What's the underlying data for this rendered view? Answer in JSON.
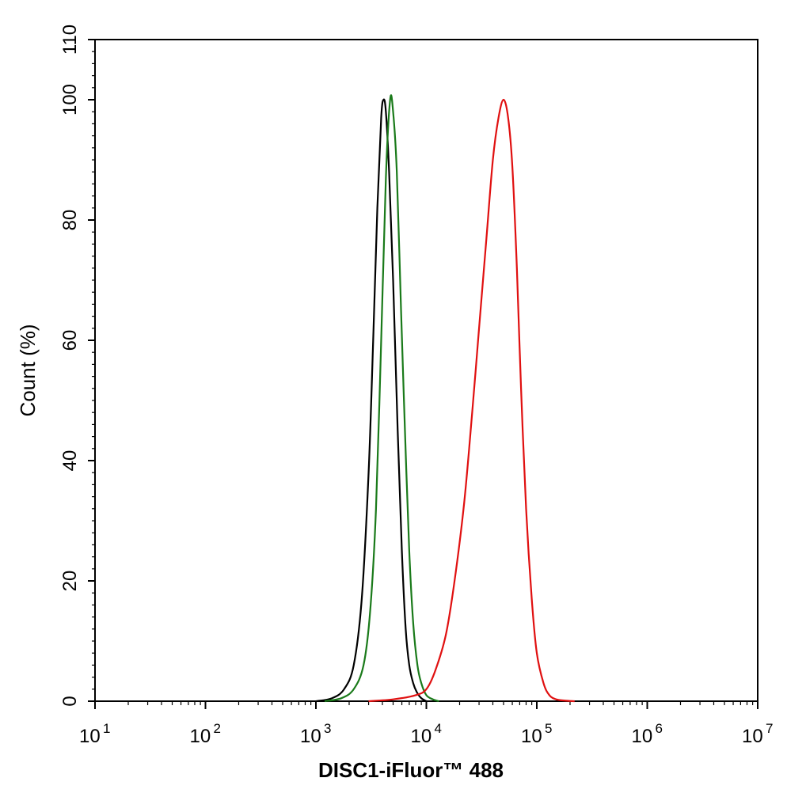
{
  "chart_data": {
    "type": "line",
    "title": "",
    "xlabel": "DISC1-iFluor™ 488",
    "ylabel": "Count  (%)",
    "xscale": "log",
    "xlim": [
      10,
      10000000
    ],
    "ylim": [
      0,
      110
    ],
    "x_tick_bases": [
      "10",
      "10",
      "10",
      "10",
      "10",
      "10",
      "10"
    ],
    "x_tick_exponents": [
      "1",
      "2",
      "3",
      "4",
      "5",
      "6",
      "7"
    ],
    "y_ticks": [
      "0",
      "20",
      "40",
      "60",
      "80",
      "100",
      "110"
    ],
    "grid": false,
    "legend": "none",
    "series": [
      {
        "color": "#000000",
        "x": [
          1000,
          1400,
          1800,
          2200,
          2600,
          3000,
          3300,
          3600,
          3900,
          4100,
          4300,
          4600,
          5000,
          5500,
          6000,
          6500,
          7000,
          7600,
          8200,
          9000,
          10000
        ],
        "y": [
          0,
          0.5,
          2,
          6,
          17,
          38,
          60,
          82,
          97,
          100,
          98,
          88,
          70,
          45,
          25,
          12,
          6,
          3,
          1.5,
          0.5,
          0
        ]
      },
      {
        "color": "#1a7a1a",
        "x": [
          1200,
          1700,
          2200,
          2700,
          3100,
          3500,
          3900,
          4300,
          4700,
          5000,
          5400,
          5900,
          6400,
          7000,
          7600,
          8300,
          9000,
          10000,
          11500,
          13000
        ],
        "y": [
          0,
          0.5,
          2,
          6,
          15,
          32,
          60,
          87,
          100,
          98,
          88,
          65,
          45,
          25,
          13,
          6,
          3,
          1,
          0.3,
          0
        ]
      },
      {
        "color": "#e01010",
        "x": [
          3000,
          5000,
          8000,
          10000,
          12000,
          15000,
          18000,
          22000,
          26000,
          30000,
          35000,
          40000,
          45000,
          50000,
          55000,
          60000,
          66000,
          72000,
          80000,
          90000,
          100000,
          115000,
          130000,
          150000,
          180000,
          220000
        ],
        "y": [
          0,
          0.3,
          1,
          2,
          5,
          11,
          20,
          33,
          48,
          62,
          77,
          90,
          97,
          100,
          97,
          89,
          72,
          52,
          32,
          17,
          8,
          3,
          1,
          0.3,
          0.1,
          0
        ]
      }
    ]
  }
}
